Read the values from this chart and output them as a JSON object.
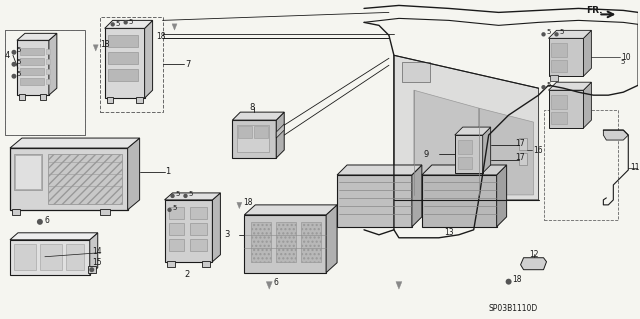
{
  "bg_color": "#f5f5f0",
  "line_color": "#1a1a1a",
  "diagram_code": "SP03B1110D",
  "fig_width": 6.4,
  "fig_height": 3.19,
  "dpi": 100
}
